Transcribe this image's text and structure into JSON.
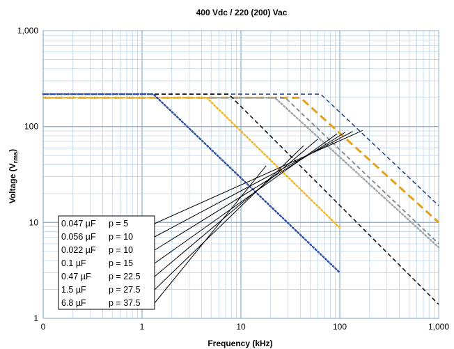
{
  "chart_data": {
    "type": "line",
    "title": "400 Vdc / 220 (200) Vac",
    "xlabel": "Frequency (kHz)",
    "ylabel_main": "Voltage (V",
    "ylabel_sub": "rms",
    "ylabel_close": ")",
    "x_scale": "log",
    "y_scale": "log",
    "xlim": [
      1,
      1000
    ],
    "ylim": [
      1,
      1000
    ],
    "x_ticks": [
      {
        "value": 0.1,
        "label": "0"
      },
      {
        "value": 1,
        "label": "1"
      },
      {
        "value": 10,
        "label": "10"
      },
      {
        "value": 100,
        "label": "100"
      },
      {
        "value": 1000,
        "label": "1,000"
      }
    ],
    "y_ticks": [
      {
        "value": 1,
        "label": "1"
      },
      {
        "value": 10,
        "label": "10"
      },
      {
        "value": 100,
        "label": "100"
      },
      {
        "value": 1000,
        "label": "1,000"
      }
    ],
    "grid": true,
    "legend_position": "bottom-left",
    "series": [
      {
        "label_cap": "0.047 µF",
        "label_p": "p = 5",
        "color": "#1F3E8C",
        "dash": "6,4",
        "width": 1.5,
        "points": [
          [
            0.1,
            218
          ],
          [
            64,
            218
          ],
          [
            1000,
            15
          ]
        ],
        "pointer": [
          170,
          91
        ]
      },
      {
        "label_cap": "0.056 µF",
        "label_p": "p = 10",
        "color": "#E3A21A",
        "dash": "11,6",
        "width": 3,
        "points": [
          [
            0.1,
            200
          ],
          [
            40,
            200
          ],
          [
            1000,
            10
          ]
        ],
        "pointer": [
          135,
          89
        ]
      },
      {
        "label_cap": "0.022 µF",
        "label_p": "p = 10",
        "color": "#8C8C8C",
        "dash": "6,4",
        "width": 2,
        "points": [
          [
            0.1,
            200
          ],
          [
            28,
            200
          ],
          [
            1000,
            6
          ]
        ],
        "pointer": [
          113,
          87
        ]
      },
      {
        "label_cap": "0.1  µF",
        "label_p": "p = 15",
        "color": "#A6A6A6",
        "dash": "2,3",
        "width": 2.5,
        "points": [
          [
            0.1,
            200
          ],
          [
            22,
            200
          ],
          [
            1000,
            5.5
          ]
        ],
        "pointer": [
          94,
          84
        ]
      },
      {
        "label_cap": "0.47 µF",
        "label_p": "p = 22.5",
        "color": "#000000",
        "dash": "6,4",
        "width": 1.5,
        "points": [
          [
            0.1,
            218
          ],
          [
            7.5,
            218
          ],
          [
            1000,
            1.4
          ]
        ],
        "pointer": [
          60,
          74
        ]
      },
      {
        "label_cap": "1.5  µF",
        "label_p": "p = 27.5",
        "color": "#F0B823",
        "dash": "2,3",
        "width": 2.5,
        "points": [
          [
            0.1,
            200
          ],
          [
            4.5,
            200
          ],
          [
            100,
            8.8
          ]
        ],
        "pointer": [
          43,
          63
        ]
      },
      {
        "label_cap": "6.8  µF",
        "label_p": "p = 37.5",
        "color": "#2E4FA5",
        "dash": "2,3",
        "width": 2.5,
        "points": [
          [
            0.1,
            218
          ],
          [
            1.3,
            218
          ],
          [
            100,
            3
          ]
        ],
        "pointer": [
          18,
          39
        ]
      }
    ]
  }
}
